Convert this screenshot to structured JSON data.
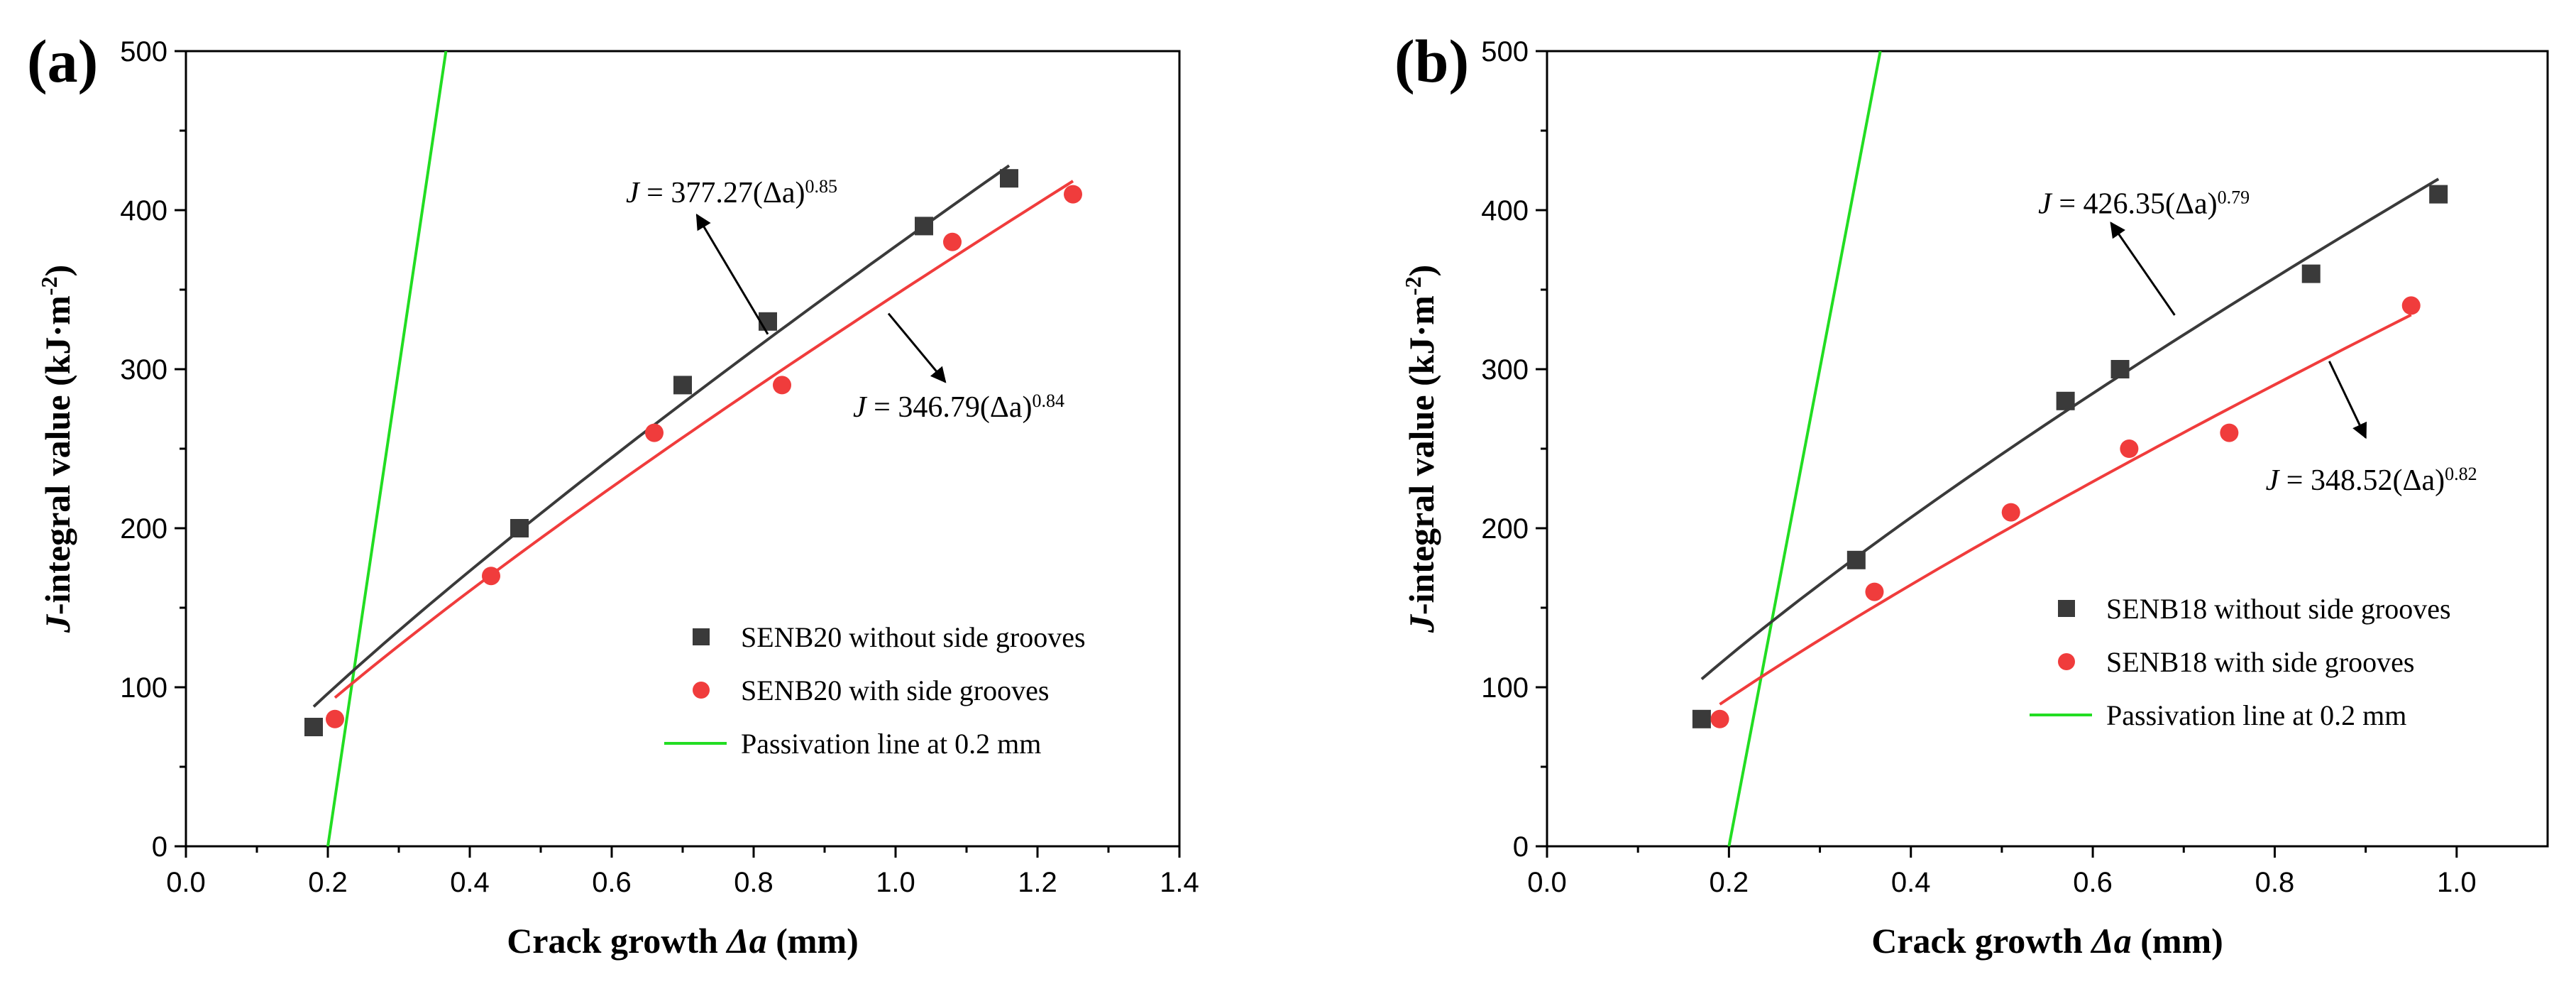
{
  "chart_data": [
    {
      "type": "scatter",
      "panel_label": "(a)",
      "xlabel_prefix": "Crack growth ",
      "xlabel_symbol": "Δa",
      "xlabel_suffix": " (mm)",
      "ylabel_prefix": "J",
      "ylabel_main": "-integral value (kJ·m",
      "ylabel_exp": "-2",
      "ylabel_close": ")",
      "xlim": [
        0.0,
        1.4
      ],
      "ylim": [
        0,
        500
      ],
      "xticks": [
        0.0,
        0.2,
        0.4,
        0.6,
        0.8,
        1.0,
        1.2,
        1.4
      ],
      "xtick_labels": [
        "0.0",
        "0.2",
        "0.4",
        "0.6",
        "0.8",
        "1.0",
        "1.2",
        "1.4"
      ],
      "yticks": [
        0,
        100,
        200,
        300,
        400,
        500
      ],
      "ytick_labels": [
        "0",
        "100",
        "200",
        "300",
        "400",
        "500"
      ],
      "colors": {
        "black_series": "#3a3a3a",
        "red_series": "#f03c3c",
        "passivation": "#22dd22"
      },
      "series": [
        {
          "name": "SENB20 without side grooves",
          "marker": "square",
          "x": [
            0.18,
            0.47,
            0.7,
            0.82,
            1.04,
            1.16
          ],
          "y": [
            75,
            200,
            290,
            330,
            390,
            420
          ],
          "fit": {
            "coef": 377.27,
            "exp": 0.85,
            "x_range": [
              0.18,
              1.16
            ]
          }
        },
        {
          "name": "SENB20 with side grooves",
          "marker": "circle",
          "x": [
            0.21,
            0.43,
            0.66,
            0.84,
            1.08,
            1.25
          ],
          "y": [
            80,
            170,
            260,
            290,
            380,
            410
          ],
          "fit": {
            "coef": 346.79,
            "exp": 0.84,
            "x_range": [
              0.21,
              1.25
            ]
          }
        }
      ],
      "passivation_line": {
        "label": "Passivation line at 0.2 mm",
        "x0": 0.2,
        "y0": 0,
        "x1": 0.3664,
        "y1": 500
      },
      "equations": [
        {
          "prefix": "J",
          "body": " = 377.27(Δa)",
          "exp": "0.85",
          "arrow_from": [
            0.82,
            322
          ],
          "arrow_to": [
            0.72,
            397
          ],
          "text_at": [
            0.62,
            405
          ]
        },
        {
          "prefix": "J",
          "body": " = 346.79(Δa)",
          "exp": "0.84",
          "arrow_from": [
            0.99,
            335
          ],
          "arrow_to": [
            1.07,
            292
          ],
          "text_at": [
            0.94,
            270
          ]
        }
      ],
      "legend_position": "lower-right"
    },
    {
      "type": "scatter",
      "panel_label": "(b)",
      "xlabel_prefix": "Crack growth ",
      "xlabel_symbol": "Δa",
      "xlabel_suffix": " (mm)",
      "ylabel_prefix": "J",
      "ylabel_main": "-integral value (kJ·m",
      "ylabel_exp": "-2",
      "ylabel_close": ")",
      "xlim": [
        0.0,
        1.1
      ],
      "ylim": [
        0,
        500
      ],
      "xticks": [
        0.0,
        0.2,
        0.4,
        0.6,
        0.8,
        1.0
      ],
      "xtick_labels": [
        "0.0",
        "0.2",
        "0.4",
        "0.6",
        "0.8",
        "1.0"
      ],
      "yticks": [
        0,
        100,
        200,
        300,
        400,
        500
      ],
      "ytick_labels": [
        "0",
        "100",
        "200",
        "300",
        "400",
        "500"
      ],
      "colors": {
        "black_series": "#3a3a3a",
        "red_series": "#f03c3c",
        "passivation": "#22dd22"
      },
      "series": [
        {
          "name": "SENB18 without side grooves",
          "marker": "square",
          "x": [
            0.17,
            0.34,
            0.57,
            0.63,
            0.84,
            0.98
          ],
          "y": [
            80,
            180,
            280,
            300,
            360,
            410
          ],
          "fit": {
            "coef": 426.35,
            "exp": 0.79,
            "x_range": [
              0.17,
              0.98
            ]
          }
        },
        {
          "name": "SENB18 with side grooves",
          "marker": "circle",
          "x": [
            0.19,
            0.36,
            0.51,
            0.64,
            0.75,
            0.95
          ],
          "y": [
            80,
            160,
            210,
            250,
            260,
            340
          ],
          "fit": {
            "coef": 348.52,
            "exp": 0.82,
            "x_range": [
              0.19,
              0.95
            ]
          }
        }
      ],
      "passivation_line": {
        "label": "Passivation line at 0.2 mm",
        "x0": 0.2,
        "y0": 0,
        "x1": 0.3664,
        "y1": 500
      },
      "equations": [
        {
          "prefix": "J",
          "body": " = 426.35(Δa)",
          "exp": "0.79",
          "arrow_from": [
            0.69,
            334
          ],
          "arrow_to": [
            0.62,
            392
          ],
          "text_at": [
            0.54,
            398
          ]
        },
        {
          "prefix": "J",
          "body": " = 348.52(Δa)",
          "exp": "0.82",
          "arrow_from": [
            0.86,
            305
          ],
          "arrow_to": [
            0.9,
            257
          ],
          "text_at": [
            0.79,
            224
          ]
        }
      ],
      "legend_position": "lower-right"
    }
  ]
}
